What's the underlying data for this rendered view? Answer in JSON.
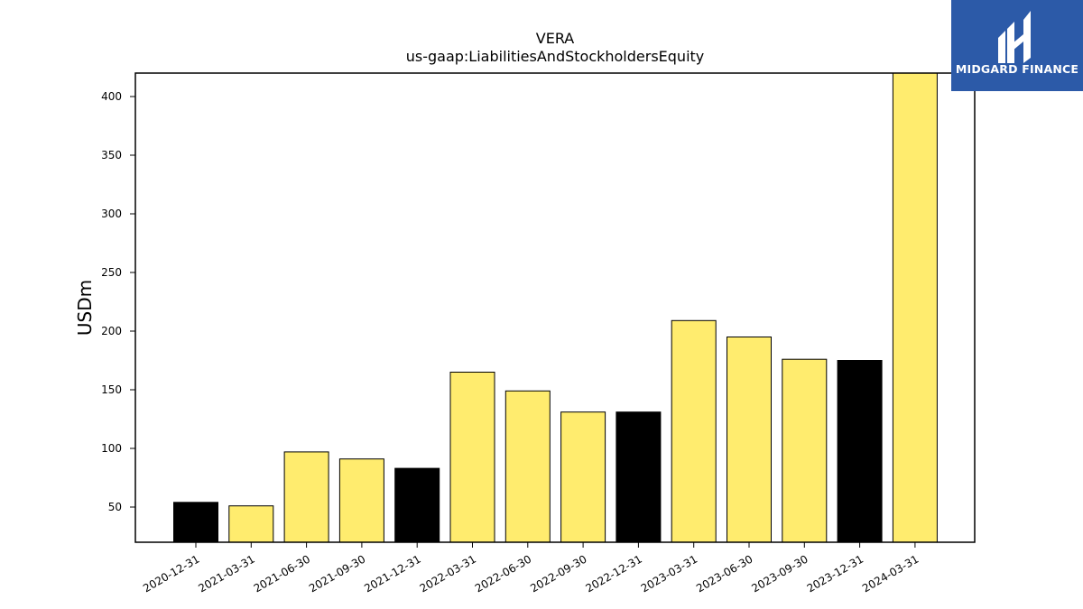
{
  "chart_data": {
    "type": "bar",
    "title": "VERA",
    "subtitle": "us-gaap:LiabilitiesAndStockholdersEquity",
    "xlabel": "",
    "ylabel": "USDm",
    "ylim": [
      20,
      420
    ],
    "yticks": [
      50,
      100,
      150,
      200,
      250,
      300,
      350,
      400
    ],
    "grid": false,
    "categories": [
      "2020-12-31",
      "2021-03-31",
      "2021-06-30",
      "2021-09-30",
      "2021-12-31",
      "2022-03-31",
      "2022-06-30",
      "2022-09-30",
      "2022-12-31",
      "2023-03-31",
      "2023-06-30",
      "2023-09-30",
      "2023-12-31",
      "2024-03-31"
    ],
    "values": [
      54,
      51,
      97,
      91,
      83,
      165,
      149,
      131,
      131,
      209,
      195,
      176,
      175,
      420
    ],
    "bar_colors": [
      "#000000",
      "#ffec6e",
      "#ffec6e",
      "#ffec6e",
      "#000000",
      "#ffec6e",
      "#ffec6e",
      "#ffec6e",
      "#000000",
      "#ffec6e",
      "#ffec6e",
      "#ffec6e",
      "#000000",
      "#ffec6e"
    ]
  },
  "logo": {
    "text": "MIDGARD FINANCE",
    "background": "#2c5aa8"
  }
}
